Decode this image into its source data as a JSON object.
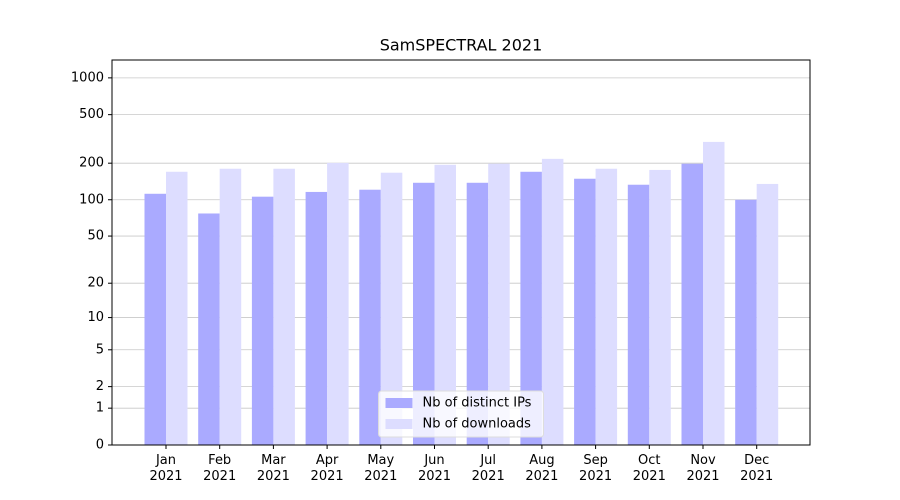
{
  "chart_data": {
    "type": "bar",
    "title": "SamSPECTRAL 2021",
    "categories": [
      "Jan\n2021",
      "Feb\n2021",
      "Mar\n2021",
      "Apr\n2021",
      "May\n2021",
      "Jun\n2021",
      "Jul\n2021",
      "Aug\n2021",
      "Sep\n2021",
      "Oct\n2021",
      "Nov\n2021",
      "Dec\n2021"
    ],
    "series": [
      {
        "name": "Nb of distinct IPs",
        "color": "#aaaaff",
        "values": [
          112,
          77,
          106,
          116,
          121,
          138,
          138,
          170,
          149,
          133,
          198,
          100
        ]
      },
      {
        "name": "Nb of downloads",
        "color": "#ddddff",
        "values": [
          170,
          180,
          180,
          201,
          167,
          194,
          198,
          217,
          180,
          176,
          299,
          135
        ]
      }
    ],
    "yscale": "log1p",
    "ylim": [
      0,
      1400
    ],
    "yticks": [
      0,
      1,
      2,
      5,
      10,
      20,
      50,
      100,
      200,
      500,
      1000
    ],
    "grid": true,
    "legend": "lower center"
  }
}
